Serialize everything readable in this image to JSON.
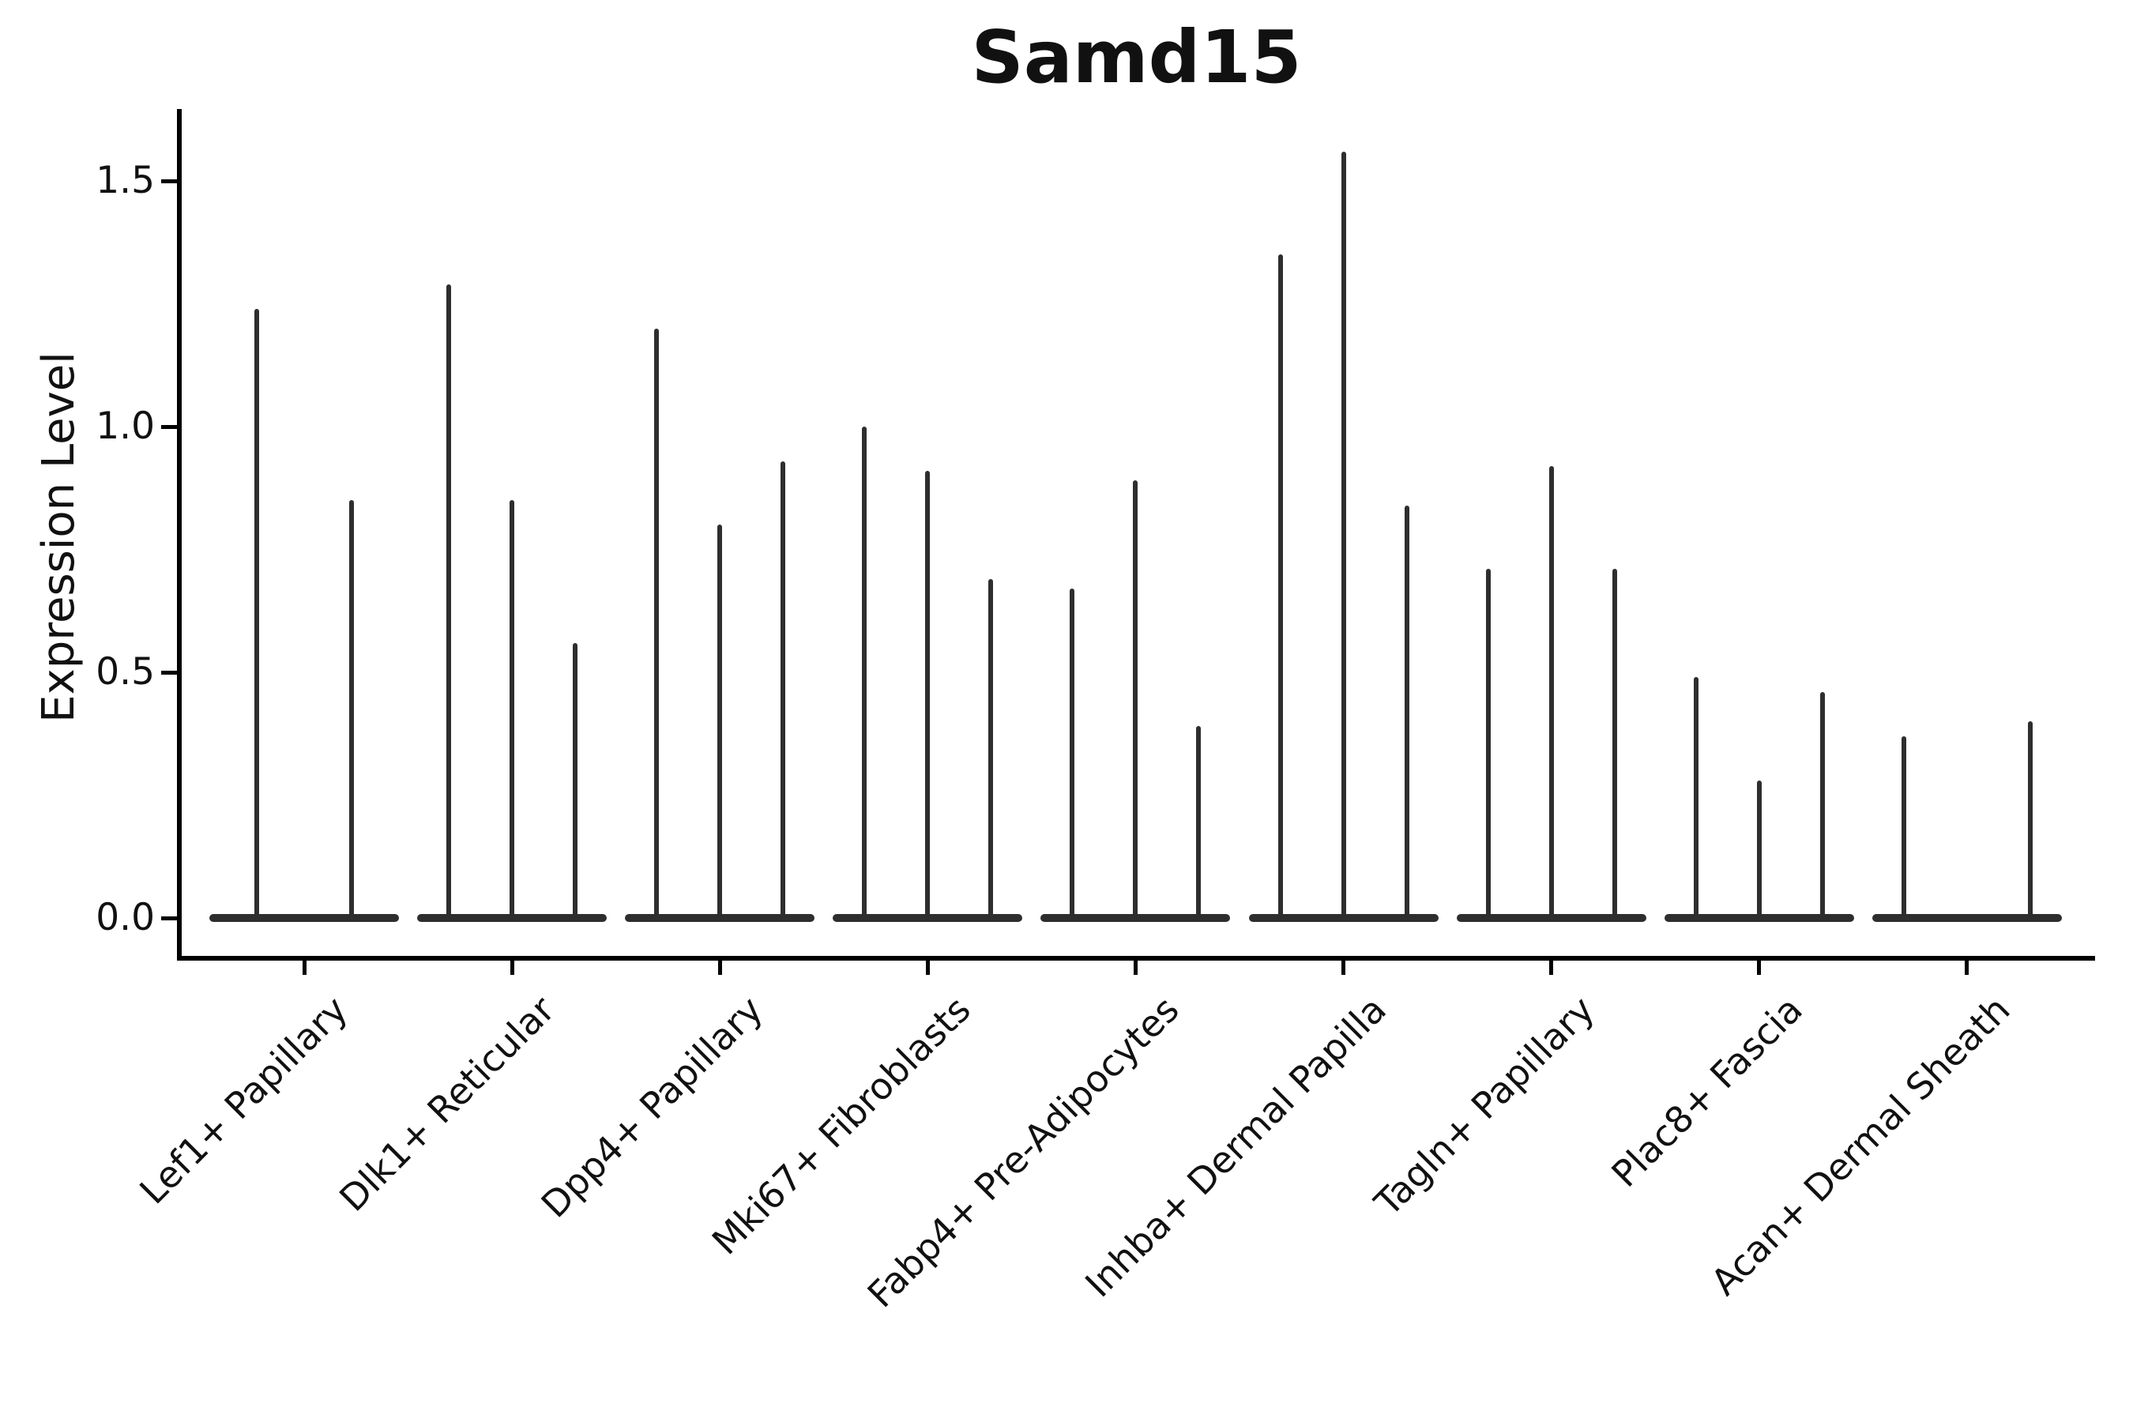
{
  "chart_data": {
    "type": "violin",
    "title": "Samd15",
    "ylabel": "Expression Level",
    "xlabel": "",
    "ytick_labels": [
      "0.0",
      "0.5",
      "1.0",
      "1.5"
    ],
    "ytick_values": [
      0,
      0.5,
      1.0,
      1.5
    ],
    "ylim": [
      -0.08,
      1.65
    ],
    "grid": "off",
    "legend": "none",
    "violin_color": "#2e2e2e",
    "axis_color": "#000000",
    "x_label_rotation_deg": 45,
    "groups": [
      {
        "label": "Lef1+ Papillary",
        "violin_peaks": [
          1.24,
          0.85
        ]
      },
      {
        "label": "Dlk1+ Reticular",
        "violin_peaks": [
          1.29,
          0.85,
          0.56
        ]
      },
      {
        "label": "Dpp4+ Papillary",
        "violin_peaks": [
          1.2,
          0.8,
          0.93
        ]
      },
      {
        "label": "Mki67+ Fibroblasts",
        "violin_peaks": [
          1.0,
          0.91,
          0.69
        ]
      },
      {
        "label": "Fabp4+ Pre-Adipocytes",
        "violin_peaks": [
          0.67,
          0.89,
          0.39
        ]
      },
      {
        "label": "Inhba+ Dermal Papilla",
        "violin_peaks": [
          1.35,
          1.56,
          0.84
        ]
      },
      {
        "label": "Tagln+ Papillary",
        "violin_peaks": [
          0.71,
          0.92,
          0.71
        ]
      },
      {
        "label": "Plac8+ Fascia",
        "violin_peaks": [
          0.49,
          0.28,
          0.46
        ]
      },
      {
        "label": "Acan+ Dermal Sheath",
        "violin_peaks": [
          0.37,
          0.0,
          0.4
        ]
      }
    ]
  }
}
